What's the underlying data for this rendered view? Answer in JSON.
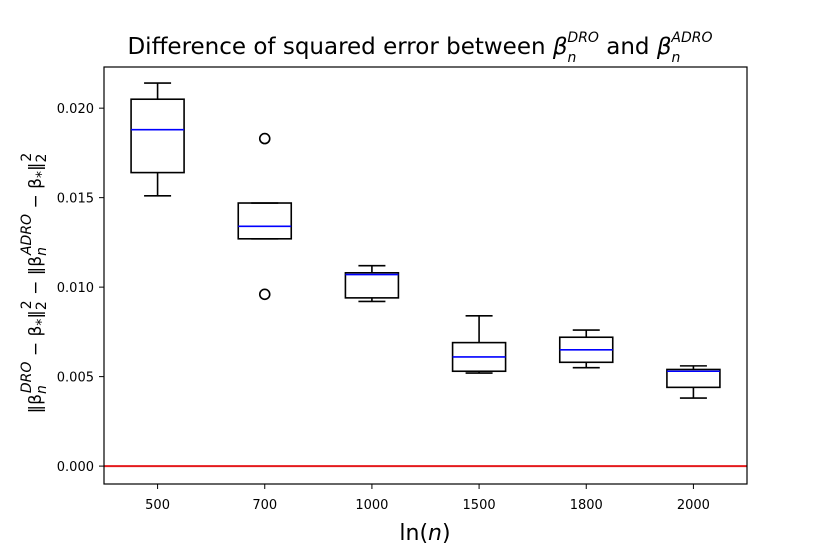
{
  "chart_data": {
    "type": "box",
    "title": {
      "prefix": "Difference of squared error between ",
      "symbol1": {
        "base": "β",
        "sub": "n",
        "sup": "DRO"
      },
      "connector": " and ",
      "symbol2": {
        "base": "β",
        "sub": "n",
        "sup": "ADRO"
      }
    },
    "xlabel": {
      "prefix": "ln(",
      "var": "n",
      "suffix": ")"
    },
    "ylabel": {
      "part1": "‖β",
      "part1_sub": "n",
      "part1_sup": "DRO",
      "part2": " − β",
      "part2_sub": "*",
      "part3": "‖",
      "part3_sub": "2",
      "part3_sup": "2",
      "part4": " − ‖β",
      "part4_sub": "n",
      "part4_sup": "ADRO",
      "part5": " − β",
      "part5_sub": "*",
      "part6": "‖",
      "part6_sub": "2",
      "part6_sup": "2"
    },
    "categories": [
      "500",
      "700",
      "1000",
      "1500",
      "1800",
      "2000"
    ],
    "ylim": [
      -0.001,
      0.0223
    ],
    "yticks": [
      0.0,
      0.005,
      0.01,
      0.015,
      0.02
    ],
    "ytick_labels": [
      "0.000",
      "0.005",
      "0.010",
      "0.015",
      "0.020"
    ],
    "boxes": [
      {
        "whisker_low": 0.0151,
        "q1": 0.0164,
        "median": 0.0188,
        "q3": 0.0205,
        "whisker_high": 0.0214,
        "outliers": []
      },
      {
        "whisker_low": 0.0127,
        "q1": 0.0127,
        "median": 0.0134,
        "q3": 0.0147,
        "whisker_high": 0.0147,
        "outliers": [
          0.0096,
          0.0183
        ]
      },
      {
        "whisker_low": 0.0092,
        "q1": 0.0094,
        "median": 0.0107,
        "q3": 0.0108,
        "whisker_high": 0.0112,
        "outliers": []
      },
      {
        "whisker_low": 0.0052,
        "q1": 0.0053,
        "median": 0.0061,
        "q3": 0.0069,
        "whisker_high": 0.0084,
        "outliers": []
      },
      {
        "whisker_low": 0.0055,
        "q1": 0.0058,
        "median": 0.0065,
        "q3": 0.0072,
        "whisker_high": 0.0076,
        "outliers": []
      },
      {
        "whisker_low": 0.0038,
        "q1": 0.0044,
        "median": 0.0053,
        "q3": 0.0054,
        "whisker_high": 0.0056,
        "outliers": []
      }
    ],
    "reference_line": {
      "y": 0.0,
      "color": "#e41a1c"
    },
    "colors": {
      "box": "#000000",
      "median": "#0000ff"
    },
    "grid": false
  }
}
